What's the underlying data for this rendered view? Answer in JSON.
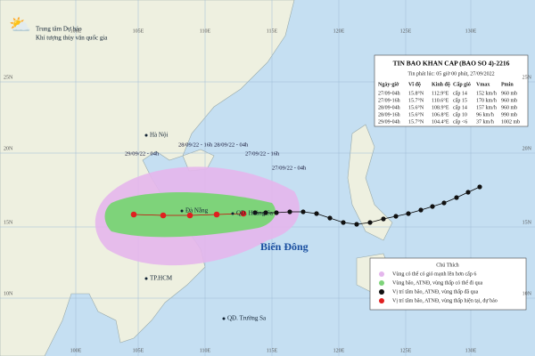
{
  "header": {
    "line1": "Trung tâm Dự báo",
    "line2": "Khí tượng thủy văn quốc gia"
  },
  "bulletin": {
    "title": "TIN BAO KHAN CAP  (BAO SO 4)-2216",
    "issued": "Tin phát lúc: 05 giờ 00 phút, 27/09/2022",
    "columns": [
      "Ngày-giờ",
      "Vĩ độ",
      "Kinh độ",
      "Cấp gió",
      "Vmax",
      "Pmin"
    ],
    "rows": [
      [
        "27/09-04h",
        "15.8°N",
        "112.9°E",
        "cấp 14",
        "152 km/h",
        "960 mb"
      ],
      [
        "27/09-16h",
        "15.7°N",
        "110.6°E",
        "cấp 15",
        "170 km/h",
        "960 mb"
      ],
      [
        "28/09-04h",
        "15.6°N",
        "108.9°E",
        "cấp 14",
        "157 km/h",
        "960 mb"
      ],
      [
        "28/09-16h",
        "15.6°N",
        "106.8°E",
        "cấp 10",
        "96 km/h",
        "990 mb"
      ],
      [
        "29/09-04h",
        "15.7°N",
        "104.4°E",
        "cấp <6",
        "37 km/h",
        "1002 mb"
      ]
    ]
  },
  "map": {
    "longitudes": [
      "100E",
      "105E",
      "110E",
      "115E",
      "120E",
      "125E",
      "130E"
    ],
    "latitudes": [
      "25N",
      "20N",
      "15N",
      "10N"
    ],
    "places": [
      "Hà Nội",
      "Đà Nẵng",
      "TP.HCM",
      "QĐ. Hoàng Sa",
      "QĐ. Trường Sa",
      "Biển Đông"
    ],
    "times": [
      "29/09/22 - 04h",
      "28/09/22 - 16h",
      "28/09/22 - 04h",
      "27/09/22 - 16h",
      "27/09/22 - 04h"
    ]
  },
  "legend": {
    "title": "Chú Thích",
    "items": [
      "Vùng có thể có gió mạnh lên hơn cấp 6",
      "Vùng bão, ATNĐ, vùng thấp có thể đi qua",
      "Vị trí tâm bão, ATNĐ, vùng thấp đã qua",
      "Vị trí tâm bão, ATNĐ, vùng thấp hiện tại, dự báo"
    ]
  }
}
